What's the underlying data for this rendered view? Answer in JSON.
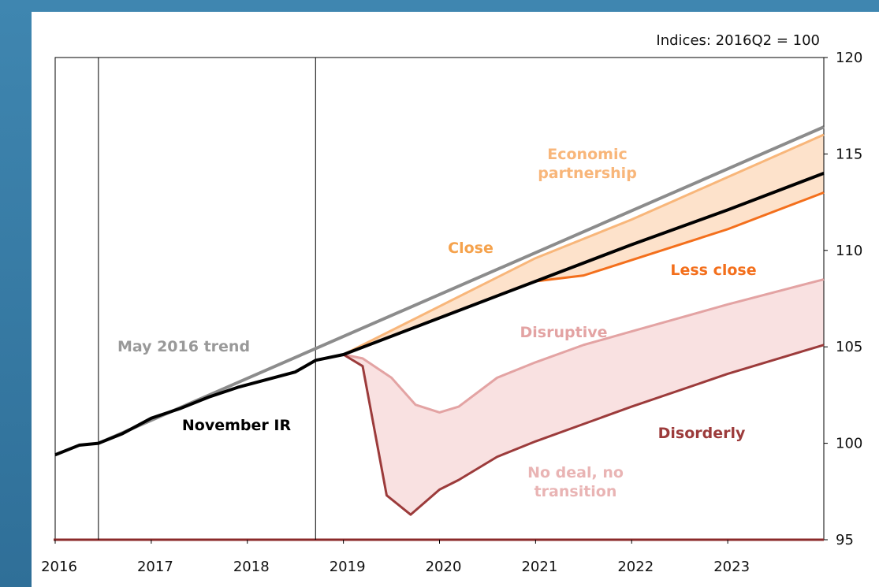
{
  "chart_data": {
    "type": "line",
    "title": "Indices: 2016Q2 = 100",
    "xlim": [
      2016,
      2024
    ],
    "ylim": [
      95,
      120
    ],
    "xticks": [
      2016,
      2017,
      2018,
      2019,
      2020,
      2021,
      2022,
      2023
    ],
    "yticks": [
      95,
      100,
      105,
      110,
      115,
      120
    ],
    "vlines": [
      2016.45,
      2018.71
    ],
    "series": [
      {
        "name": "May 2016 trend",
        "color": "#8c8c8c",
        "x": [
          2016.45,
          2024
        ],
        "values": [
          100,
          116.4
        ]
      },
      {
        "name": "November IR",
        "color": "#000000",
        "x": [
          2016,
          2016.25,
          2016.45,
          2016.7,
          2017,
          2017.3,
          2017.6,
          2017.9,
          2018.2,
          2018.5,
          2018.71,
          2019,
          2020,
          2021,
          2022,
          2023,
          2024
        ],
        "values": [
          99.4,
          99.9,
          100,
          100.5,
          101.3,
          101.8,
          102.4,
          102.9,
          103.3,
          103.7,
          104.3,
          104.6,
          106.5,
          108.4,
          110.3,
          112.1,
          114.0
        ]
      },
      {
        "name": "Economic partnership",
        "color": "#f8b67a",
        "x": [
          2019,
          2020,
          2021,
          2022,
          2023,
          2024
        ],
        "values": [
          104.6,
          107.1,
          109.6,
          111.6,
          113.8,
          116.0
        ]
      },
      {
        "name": "Less close",
        "color": "#f36f1c",
        "x": [
          2019,
          2020,
          2021,
          2021.5,
          2022,
          2023,
          2024
        ],
        "values": [
          104.6,
          106.5,
          108.4,
          108.7,
          109.5,
          111.1,
          113.0
        ]
      },
      {
        "name": "Disruptive",
        "color": "#e3a3a3",
        "x": [
          2019,
          2019.2,
          2019.5,
          2019.75,
          2020,
          2020.2,
          2020.6,
          2021,
          2021.5,
          2022,
          2023,
          2024
        ],
        "values": [
          104.6,
          104.4,
          103.4,
          102.0,
          101.6,
          101.9,
          103.4,
          104.2,
          105.1,
          105.8,
          107.2,
          108.5
        ]
      },
      {
        "name": "Disorderly",
        "color": "#9c3b3b",
        "x": [
          2019,
          2019.2,
          2019.45,
          2019.7,
          2020,
          2020.2,
          2020.6,
          2021,
          2021.5,
          2022,
          2023,
          2024
        ],
        "values": [
          104.6,
          104.0,
          97.3,
          96.3,
          97.6,
          98.1,
          99.3,
          100.1,
          101.0,
          101.9,
          103.6,
          105.1
        ]
      }
    ],
    "bands": [
      {
        "between": [
          "Economic partnership",
          "Less close"
        ],
        "color": "#fde2cb"
      },
      {
        "between": [
          "Disruptive",
          "Disorderly"
        ],
        "color": "#f9e1e1"
      }
    ],
    "annotations": [
      {
        "text": "Close",
        "color": "#f5a24c"
      },
      {
        "text": "No deal, no transition",
        "color": "#e9b4b4"
      }
    ]
  }
}
